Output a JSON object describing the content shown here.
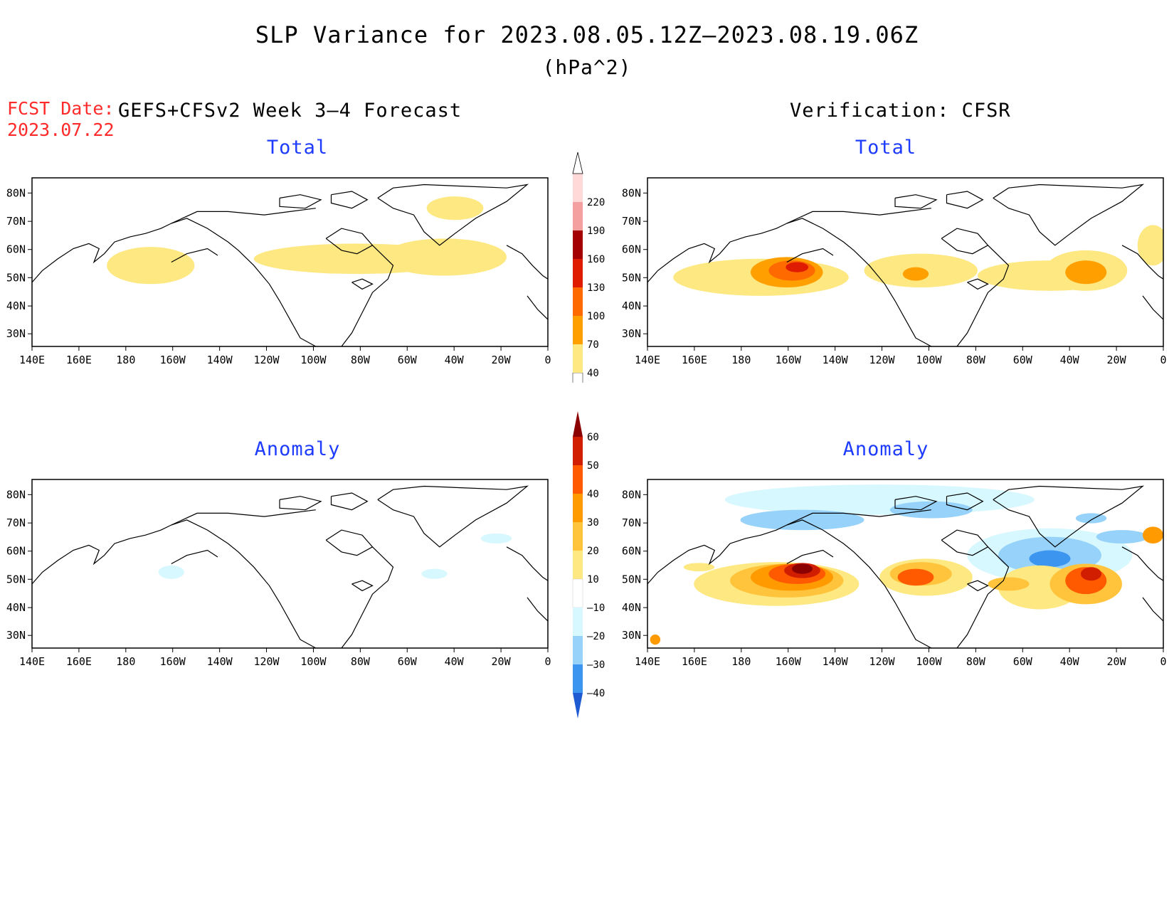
{
  "title": "SLP Variance for 2023.08.05.12Z–2023.08.19.06Z",
  "units": "(hPa^2)",
  "forecast_date": {
    "label": "FCST Date:",
    "value": "2023.07.22"
  },
  "left_header": "GEFS+CFSv2 Week 3–4 Forecast",
  "right_header": "Verification: CFSR",
  "panels": {
    "fcst_total": {
      "title": "Total"
    },
    "verif_total": {
      "title": "Total"
    },
    "fcst_anom": {
      "title": "Anomaly"
    },
    "verif_anom": {
      "title": "Anomaly"
    }
  },
  "map_axes": {
    "lon_labels": [
      "140E",
      "160E",
      "180",
      "160W",
      "140W",
      "120W",
      "100W",
      "80W",
      "60W",
      "40W",
      "20W",
      "0"
    ],
    "lat_labels": [
      "30N",
      "40N",
      "50N",
      "60N",
      "70N",
      "80N"
    ]
  },
  "colorbars": {
    "total": {
      "levels": [
        "40",
        "70",
        "100",
        "130",
        "160",
        "190",
        "220"
      ],
      "colors": [
        "#fde882",
        "#ffa000",
        "#ff6a00",
        "#e01c00",
        "#a50000",
        "#f4a0a0",
        "#ffd8d8"
      ]
    },
    "anomaly": {
      "levels": [
        "60",
        "50",
        "40",
        "30",
        "20",
        "10",
        "–10",
        "–20",
        "–30",
        "–40"
      ],
      "colors": [
        "#8b0000",
        "#d21e00",
        "#ff5a00",
        "#ff9a00",
        "#ffc43c",
        "#fde882",
        "#ffffff",
        "#d8f8ff",
        "#96d2fa",
        "#3c96f0",
        "#1e5ad2"
      ]
    }
  }
}
